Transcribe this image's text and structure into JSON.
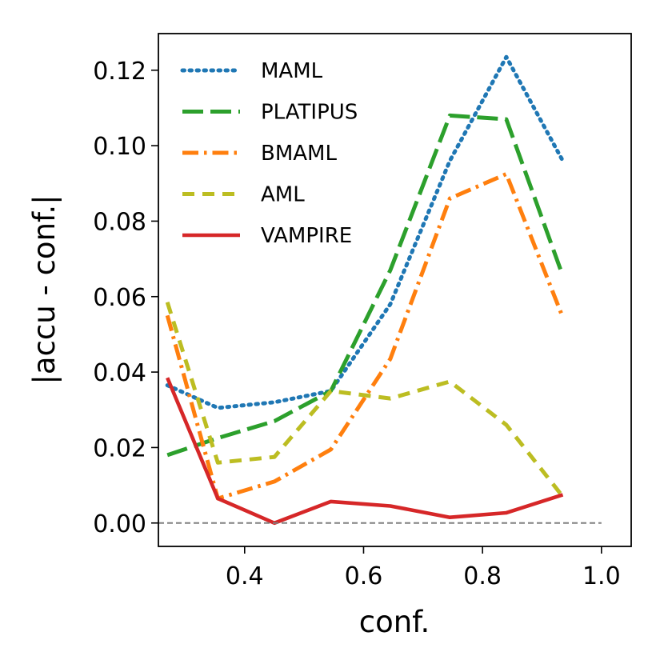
{
  "chart_data": {
    "type": "line",
    "title": "",
    "xlabel": "conf.",
    "ylabel": "|accu - conf.|",
    "xlim": [
      0.255,
      1.05
    ],
    "ylim": [
      -0.0062,
      0.1297
    ],
    "xticks": [
      0.4,
      0.6,
      0.8,
      1.0
    ],
    "xtick_labels": [
      "0.4",
      "0.6",
      "0.8",
      "1.0"
    ],
    "yticks": [
      0.0,
      0.02,
      0.04,
      0.06,
      0.08,
      0.1,
      0.12
    ],
    "ytick_labels": [
      "0.00",
      "0.02",
      "0.04",
      "0.06",
      "0.08",
      "0.10",
      "0.12"
    ],
    "grid": false,
    "legend_position": "top-left",
    "reference_line": {
      "y": 0.0,
      "color": "#808080",
      "style": "dashed"
    },
    "series": [
      {
        "name": "MAML",
        "color": "#1f77b4",
        "style": "dotted",
        "x": [
          0.27,
          0.355,
          0.45,
          0.545,
          0.645,
          0.745,
          0.84,
          0.935
        ],
        "y": [
          0.0365,
          0.0305,
          0.032,
          0.035,
          0.058,
          0.096,
          0.1235,
          0.096
        ]
      },
      {
        "name": "PLATIPUS",
        "color": "#2ca02c",
        "style": "dashed",
        "x": [
          0.27,
          0.355,
          0.45,
          0.545,
          0.645,
          0.745,
          0.84,
          0.935
        ],
        "y": [
          0.018,
          0.0225,
          0.027,
          0.035,
          0.067,
          0.108,
          0.107,
          0.0655
        ]
      },
      {
        "name": "BMAML",
        "color": "#ff7f0e",
        "style": "dashdot",
        "x": [
          0.27,
          0.355,
          0.45,
          0.545,
          0.645,
          0.745,
          0.84,
          0.935
        ],
        "y": [
          0.055,
          0.0065,
          0.011,
          0.0195,
          0.0435,
          0.086,
          0.0925,
          0.0545
        ]
      },
      {
        "name": "AML",
        "color": "#bcbd22",
        "style": "dashed-short",
        "x": [
          0.27,
          0.355,
          0.45,
          0.545,
          0.645,
          0.745,
          0.84,
          0.935
        ],
        "y": [
          0.0585,
          0.016,
          0.0175,
          0.035,
          0.033,
          0.0375,
          0.026,
          0.007
        ]
      },
      {
        "name": "VAMPIRE",
        "color": "#d62728",
        "style": "solid",
        "x": [
          0.27,
          0.355,
          0.45,
          0.545,
          0.645,
          0.745,
          0.84,
          0.935
        ],
        "y": [
          0.0385,
          0.0065,
          0.0,
          0.0057,
          0.0045,
          0.0015,
          0.0027,
          0.0075
        ]
      }
    ]
  }
}
